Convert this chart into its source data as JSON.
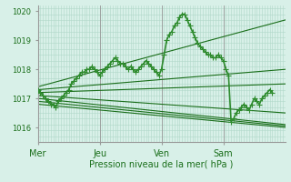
{
  "title": "",
  "xlabel": "Pression niveau de la mer( hPa )",
  "ylabel": "",
  "background_color": "#d8f0e8",
  "grid_color": "#b0d8c8",
  "line_color_dark": "#1a6e1a",
  "line_color_medium": "#2e8b2e",
  "ylim": [
    1015.5,
    1020.2
  ],
  "xlim": [
    0,
    96
  ],
  "xtick_positions": [
    0,
    24,
    48,
    72,
    96
  ],
  "xtick_labels": [
    "Mer",
    "Jeu",
    "Ven",
    "Sam"
  ],
  "ytick_positions": [
    1016,
    1017,
    1018,
    1019,
    1020
  ],
  "day_lines": [
    0,
    24,
    48,
    72,
    96
  ],
  "series": [
    {
      "x": [
        0,
        1,
        2,
        3,
        4,
        5,
        6,
        7,
        8,
        9,
        10,
        11,
        12,
        13,
        14,
        15,
        16,
        17,
        18,
        19,
        20,
        21,
        22,
        23,
        24,
        25,
        26,
        27,
        28,
        29,
        30,
        31,
        32,
        33,
        34,
        35,
        36,
        37,
        38,
        39,
        40,
        41,
        42,
        43,
        44,
        45,
        46,
        47,
        48,
        49,
        50,
        51,
        52,
        53,
        54,
        55,
        56,
        57,
        58,
        59,
        60,
        61,
        62,
        63,
        64,
        65,
        66,
        67,
        68,
        69,
        70,
        71,
        72,
        73,
        74,
        75,
        76,
        77,
        78,
        79,
        80,
        81,
        82,
        83,
        84,
        85,
        86,
        87,
        88,
        89,
        90,
        91
      ],
      "y": [
        1017.3,
        1017.2,
        1017.1,
        1017.0,
        1016.9,
        1016.8,
        1016.8,
        1016.7,
        1016.9,
        1017.0,
        1017.1,
        1017.2,
        1017.3,
        1017.5,
        1017.6,
        1017.7,
        1017.8,
        1017.9,
        1017.9,
        1018.0,
        1018.0,
        1018.1,
        1018.0,
        1017.9,
        1017.8,
        1017.9,
        1018.0,
        1018.1,
        1018.2,
        1018.3,
        1018.4,
        1018.3,
        1018.2,
        1018.2,
        1018.1,
        1018.0,
        1018.1,
        1018.0,
        1017.9,
        1018.0,
        1018.1,
        1018.2,
        1018.3,
        1018.2,
        1018.1,
        1018.0,
        1017.9,
        1017.8,
        1018.0,
        1018.5,
        1019.0,
        1019.2,
        1019.3,
        1019.5,
        1019.6,
        1019.8,
        1019.9,
        1019.9,
        1019.7,
        1019.5,
        1019.3,
        1019.1,
        1018.9,
        1018.8,
        1018.7,
        1018.6,
        1018.5,
        1018.5,
        1018.4,
        1018.4,
        1018.5,
        1018.4,
        1018.3,
        1018.0,
        1017.8,
        1016.2,
        1016.3,
        1016.5,
        1016.6,
        1016.7,
        1016.8,
        1016.7,
        1016.6,
        1016.8,
        1017.0,
        1016.9,
        1016.8,
        1017.0,
        1017.1,
        1017.2,
        1017.3,
        1017.2
      ],
      "marker": "+",
      "color": "#2e8b2e",
      "linewidth": 1.2,
      "markersize": 4
    },
    {
      "x": [
        0,
        96
      ],
      "y": [
        1017.3,
        1018.0
      ],
      "color": "#1a6e1a",
      "linewidth": 0.8
    },
    {
      "x": [
        0,
        96
      ],
      "y": [
        1017.2,
        1017.5
      ],
      "color": "#1a6e1a",
      "linewidth": 0.8
    },
    {
      "x": [
        0,
        96
      ],
      "y": [
        1017.1,
        1016.5
      ],
      "color": "#1a6e1a",
      "linewidth": 0.8
    },
    {
      "x": [
        0,
        96
      ],
      "y": [
        1017.0,
        1016.1
      ],
      "color": "#1a6e1a",
      "linewidth": 0.8
    },
    {
      "x": [
        0,
        96
      ],
      "y": [
        1016.9,
        1016.05
      ],
      "color": "#1a6e1a",
      "linewidth": 0.8
    },
    {
      "x": [
        0,
        96
      ],
      "y": [
        1016.8,
        1016.0
      ],
      "color": "#1a6e1a",
      "linewidth": 0.8
    },
    {
      "x": [
        0,
        96
      ],
      "y": [
        1017.4,
        1019.7
      ],
      "color": "#1a6e1a",
      "linewidth": 0.8
    }
  ]
}
